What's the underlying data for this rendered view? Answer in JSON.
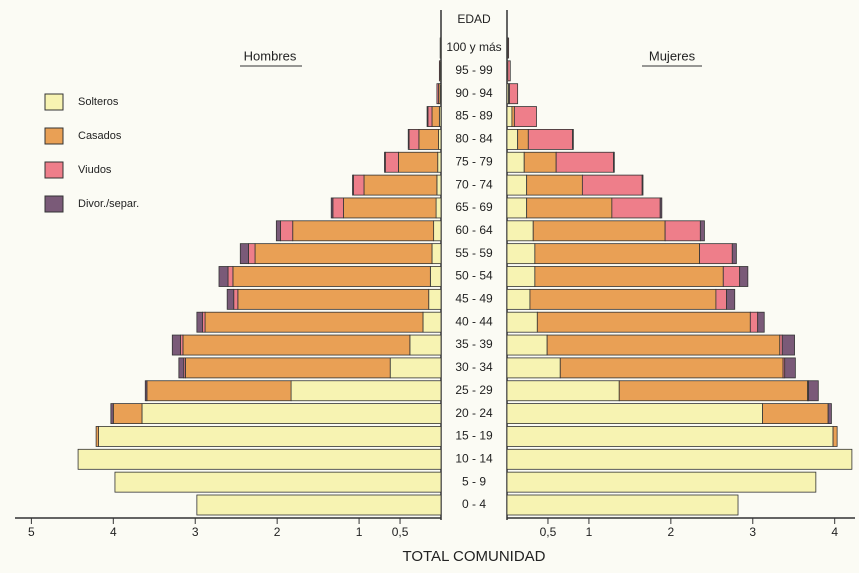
{
  "chart_data": {
    "type": "pyramid",
    "header": "EDAD",
    "xlabel": "TOTAL COMUNIDAD",
    "left_label": "Hombres",
    "right_label": "Mujeres",
    "categories": [
      "100 y más",
      "95 - 99",
      "90 - 94",
      "85 - 89",
      "80 - 84",
      "75 - 79",
      "70 - 74",
      "65 - 69",
      "60 - 64",
      "55 - 59",
      "50 - 54",
      "45 - 49",
      "40 - 44",
      "35 - 39",
      "30 - 34",
      "25 - 29",
      "20 - 24",
      "15 - 19",
      "10 - 14",
      "5 - 9",
      "0 - 4"
    ],
    "xlim": [
      0,
      5.2
    ],
    "left_ticks": [
      {
        "value": 0.5,
        "label": "0,5"
      },
      1,
      2,
      3,
      4,
      5
    ],
    "right_ticks": [
      {
        "value": 0.5,
        "label": "0,5"
      },
      1,
      2,
      3,
      4
    ],
    "series": [
      {
        "name": "Solteros",
        "color": "#f7f3b2",
        "hombres": [
          0.01,
          0.01,
          0.01,
          0.02,
          0.03,
          0.04,
          0.05,
          0.06,
          0.09,
          0.11,
          0.13,
          0.15,
          0.22,
          0.38,
          0.62,
          1.83,
          3.65,
          4.18,
          4.43,
          3.98,
          2.98
        ],
        "mujeres": [
          0.01,
          0.01,
          0.02,
          0.06,
          0.13,
          0.21,
          0.24,
          0.24,
          0.32,
          0.34,
          0.34,
          0.28,
          0.37,
          0.49,
          0.65,
          1.37,
          3.12,
          3.98,
          4.21,
          3.77,
          2.82
        ]
      },
      {
        "name": "Casados",
        "color": "#e9a055",
        "hombres": [
          0,
          0,
          0.02,
          0.09,
          0.24,
          0.48,
          0.89,
          1.13,
          1.72,
          2.16,
          2.41,
          2.33,
          2.66,
          2.77,
          2.5,
          1.76,
          0.35,
          0.03,
          0,
          0,
          0
        ],
        "mujeres": [
          0,
          0,
          0.01,
          0.03,
          0.13,
          0.39,
          0.68,
          1.04,
          1.61,
          2.01,
          2.3,
          2.27,
          2.6,
          2.84,
          2.72,
          2.3,
          0.8,
          0.05,
          0,
          0,
          0
        ]
      },
      {
        "name": "Viudos",
        "color": "#ee7e8a",
        "hombres": [
          0,
          0.01,
          0.02,
          0.05,
          0.12,
          0.16,
          0.13,
          0.13,
          0.15,
          0.08,
          0.06,
          0.05,
          0.03,
          0.03,
          0.02,
          0,
          0,
          0,
          0,
          0,
          0
        ],
        "mujeres": [
          0.01,
          0.03,
          0.1,
          0.27,
          0.54,
          0.7,
          0.73,
          0.59,
          0.43,
          0.4,
          0.2,
          0.13,
          0.09,
          0.03,
          0.02,
          0.01,
          0,
          0,
          0,
          0,
          0
        ]
      },
      {
        "name": "Divor./separ.",
        "color": "#7a5a78",
        "hombres": [
          0,
          0,
          0,
          0.01,
          0.01,
          0.01,
          0.01,
          0.02,
          0.05,
          0.1,
          0.11,
          0.08,
          0.07,
          0.1,
          0.06,
          0.02,
          0.03,
          0,
          0,
          0,
          0
        ],
        "mujeres": [
          0,
          0,
          0,
          0,
          0.01,
          0.01,
          0.01,
          0.02,
          0.05,
          0.05,
          0.1,
          0.1,
          0.08,
          0.15,
          0.13,
          0.12,
          0.04,
          0,
          0,
          0,
          0
        ]
      }
    ]
  }
}
